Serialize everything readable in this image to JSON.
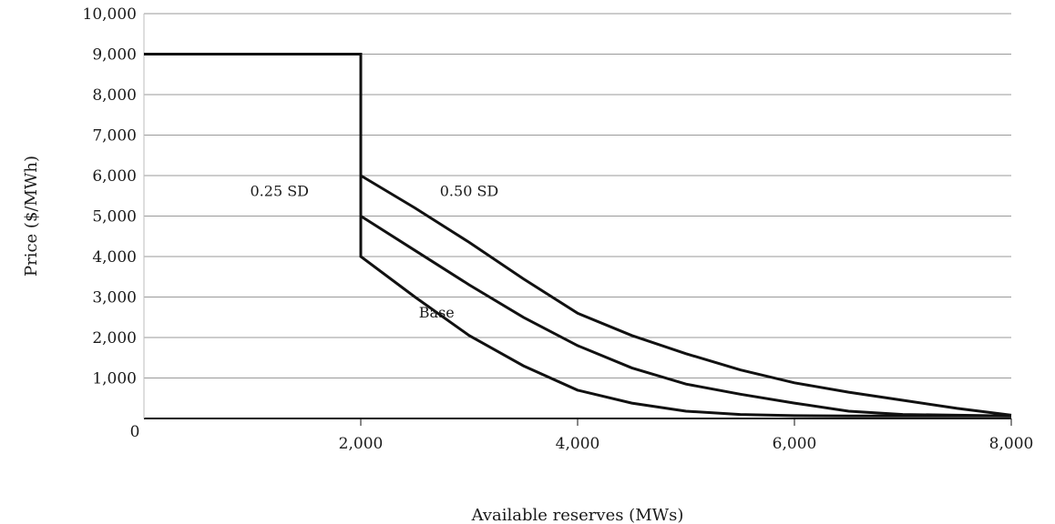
{
  "chart_data": {
    "type": "line",
    "xlabel": "Available reserves (MWs)",
    "ylabel": "Price ($/MWh)",
    "xlim": [
      0,
      8000
    ],
    "ylim": [
      0,
      10000
    ],
    "x_ticks": [
      2000,
      4000,
      6000,
      8000
    ],
    "x_tick_labels": [
      "2,000",
      "4,000",
      "6,000",
      "8,000"
    ],
    "y_ticks": [
      1000,
      2000,
      3000,
      4000,
      5000,
      6000,
      7000,
      8000,
      9000,
      10000
    ],
    "y_tick_labels": [
      "1,000",
      "2,000",
      "3,000",
      "4,000",
      "5,000",
      "6,000",
      "7,000",
      "8,000",
      "9,000",
      "10,000"
    ],
    "origin_label": "0",
    "grid": true,
    "legend": "none",
    "series": [
      {
        "name": "Base",
        "x": [
          0,
          2000,
          2000,
          2500,
          3000,
          3500,
          4000,
          4500,
          5000,
          5500,
          6000,
          6500,
          7000,
          7500,
          8000
        ],
        "y": [
          9000,
          9000,
          4000,
          3000,
          2050,
          1300,
          700,
          380,
          180,
          100,
          70,
          60,
          60,
          60,
          60
        ]
      },
      {
        "name": "0.25 SD",
        "x": [
          2000,
          2500,
          3000,
          3500,
          4000,
          4500,
          5000,
          5500,
          6000,
          6500,
          7000,
          7500,
          8000
        ],
        "y": [
          5000,
          4150,
          3300,
          2500,
          1800,
          1250,
          850,
          600,
          380,
          180,
          100,
          80,
          60
        ]
      },
      {
        "name": "0.50 SD",
        "x": [
          2000,
          2500,
          3000,
          3500,
          4000,
          4500,
          5000,
          5500,
          6000,
          6500,
          7000,
          7500,
          8000
        ],
        "y": [
          6000,
          5200,
          4350,
          3450,
          2600,
          2050,
          1600,
          1200,
          880,
          650,
          450,
          250,
          80
        ]
      }
    ],
    "annotations": [
      {
        "text": "0.25 SD",
        "x": 1250,
        "y": 5500
      },
      {
        "text": "0.50 SD",
        "x": 3000,
        "y": 5500
      },
      {
        "text": "Base",
        "x": 2700,
        "y": 2500
      }
    ]
  }
}
